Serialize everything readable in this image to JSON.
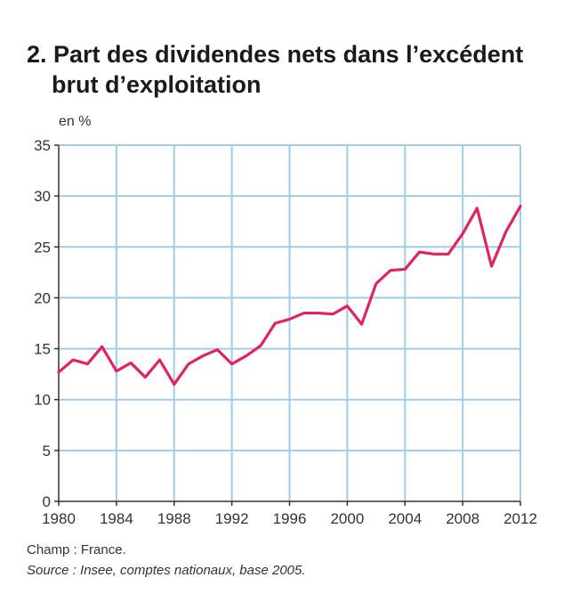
{
  "title_line1": "2. Part des dividendes nets dans l’excédent",
  "title_line2": "brut d’exploitation",
  "unit_label": "en %",
  "footer": {
    "champ": "Champ : France.",
    "source": "Source : Insee, comptes nationaux, base 2005."
  },
  "colors": {
    "line": "#e0245e",
    "grid": "#9ecde8",
    "axis": "#333333"
  },
  "chart_data": {
    "type": "line",
    "ylim": [
      0,
      35
    ],
    "yticks": [
      0,
      5,
      10,
      15,
      20,
      25,
      30,
      35
    ],
    "xlim": [
      1980,
      2012
    ],
    "xticks": [
      1980,
      1984,
      1988,
      1992,
      1996,
      2000,
      2004,
      2008,
      2012
    ],
    "grid": true,
    "series": [
      {
        "x": [
          1980,
          1981,
          1982,
          1983,
          1984,
          1985,
          1986,
          1987,
          1988,
          1989,
          1990,
          1991,
          1992,
          1993,
          1994,
          1995,
          1996,
          1997,
          1998,
          1999,
          2000,
          2001,
          2002,
          2003,
          2004,
          2005,
          2006,
          2007,
          2008,
          2009,
          2010,
          2011,
          2012
        ],
        "values": [
          12.7,
          13.9,
          13.5,
          15.2,
          12.8,
          13.6,
          12.2,
          13.9,
          11.5,
          13.5,
          14.3,
          14.9,
          13.5,
          14.3,
          15.3,
          17.5,
          17.9,
          18.5,
          18.5,
          18.4,
          19.2,
          17.4,
          21.4,
          22.7,
          22.8,
          24.5,
          24.3,
          24.3,
          26.3,
          28.8,
          23.1,
          26.5,
          29.0
        ]
      }
    ]
  }
}
